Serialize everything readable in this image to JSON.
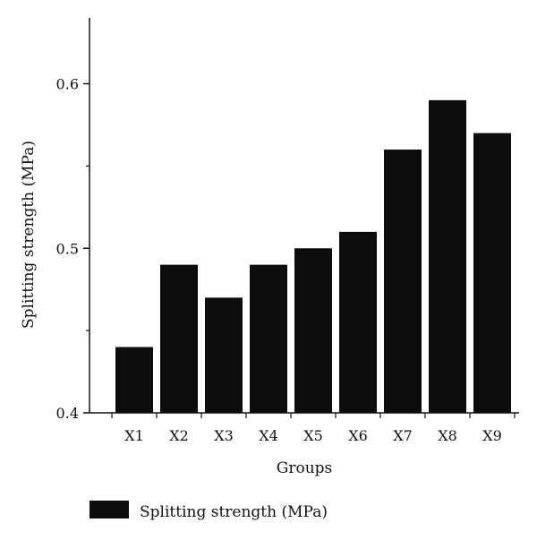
{
  "chart_data": {
    "type": "bar",
    "categories": [
      "X1",
      "X2",
      "X3",
      "X4",
      "X5",
      "X6",
      "X7",
      "X8",
      "X9"
    ],
    "series": [
      {
        "name": "Splitting strength (MPa)",
        "values": [
          0.44,
          0.49,
          0.47,
          0.49,
          0.5,
          0.51,
          0.56,
          0.59,
          0.57
        ]
      }
    ],
    "xlabel": "Groups",
    "ylabel": "Splitting strength (MPa)",
    "ylim": [
      0.4,
      0.64
    ],
    "yticks": [
      0.4,
      0.5,
      0.6
    ],
    "ytick_labels": [
      "0.4",
      "0.5",
      "0.6"
    ],
    "grid": false,
    "legend": {
      "placement": "bottom-left"
    },
    "colors": {
      "bars": "#0d0d0d",
      "axes": "#111111",
      "background": "#ffffff"
    }
  }
}
